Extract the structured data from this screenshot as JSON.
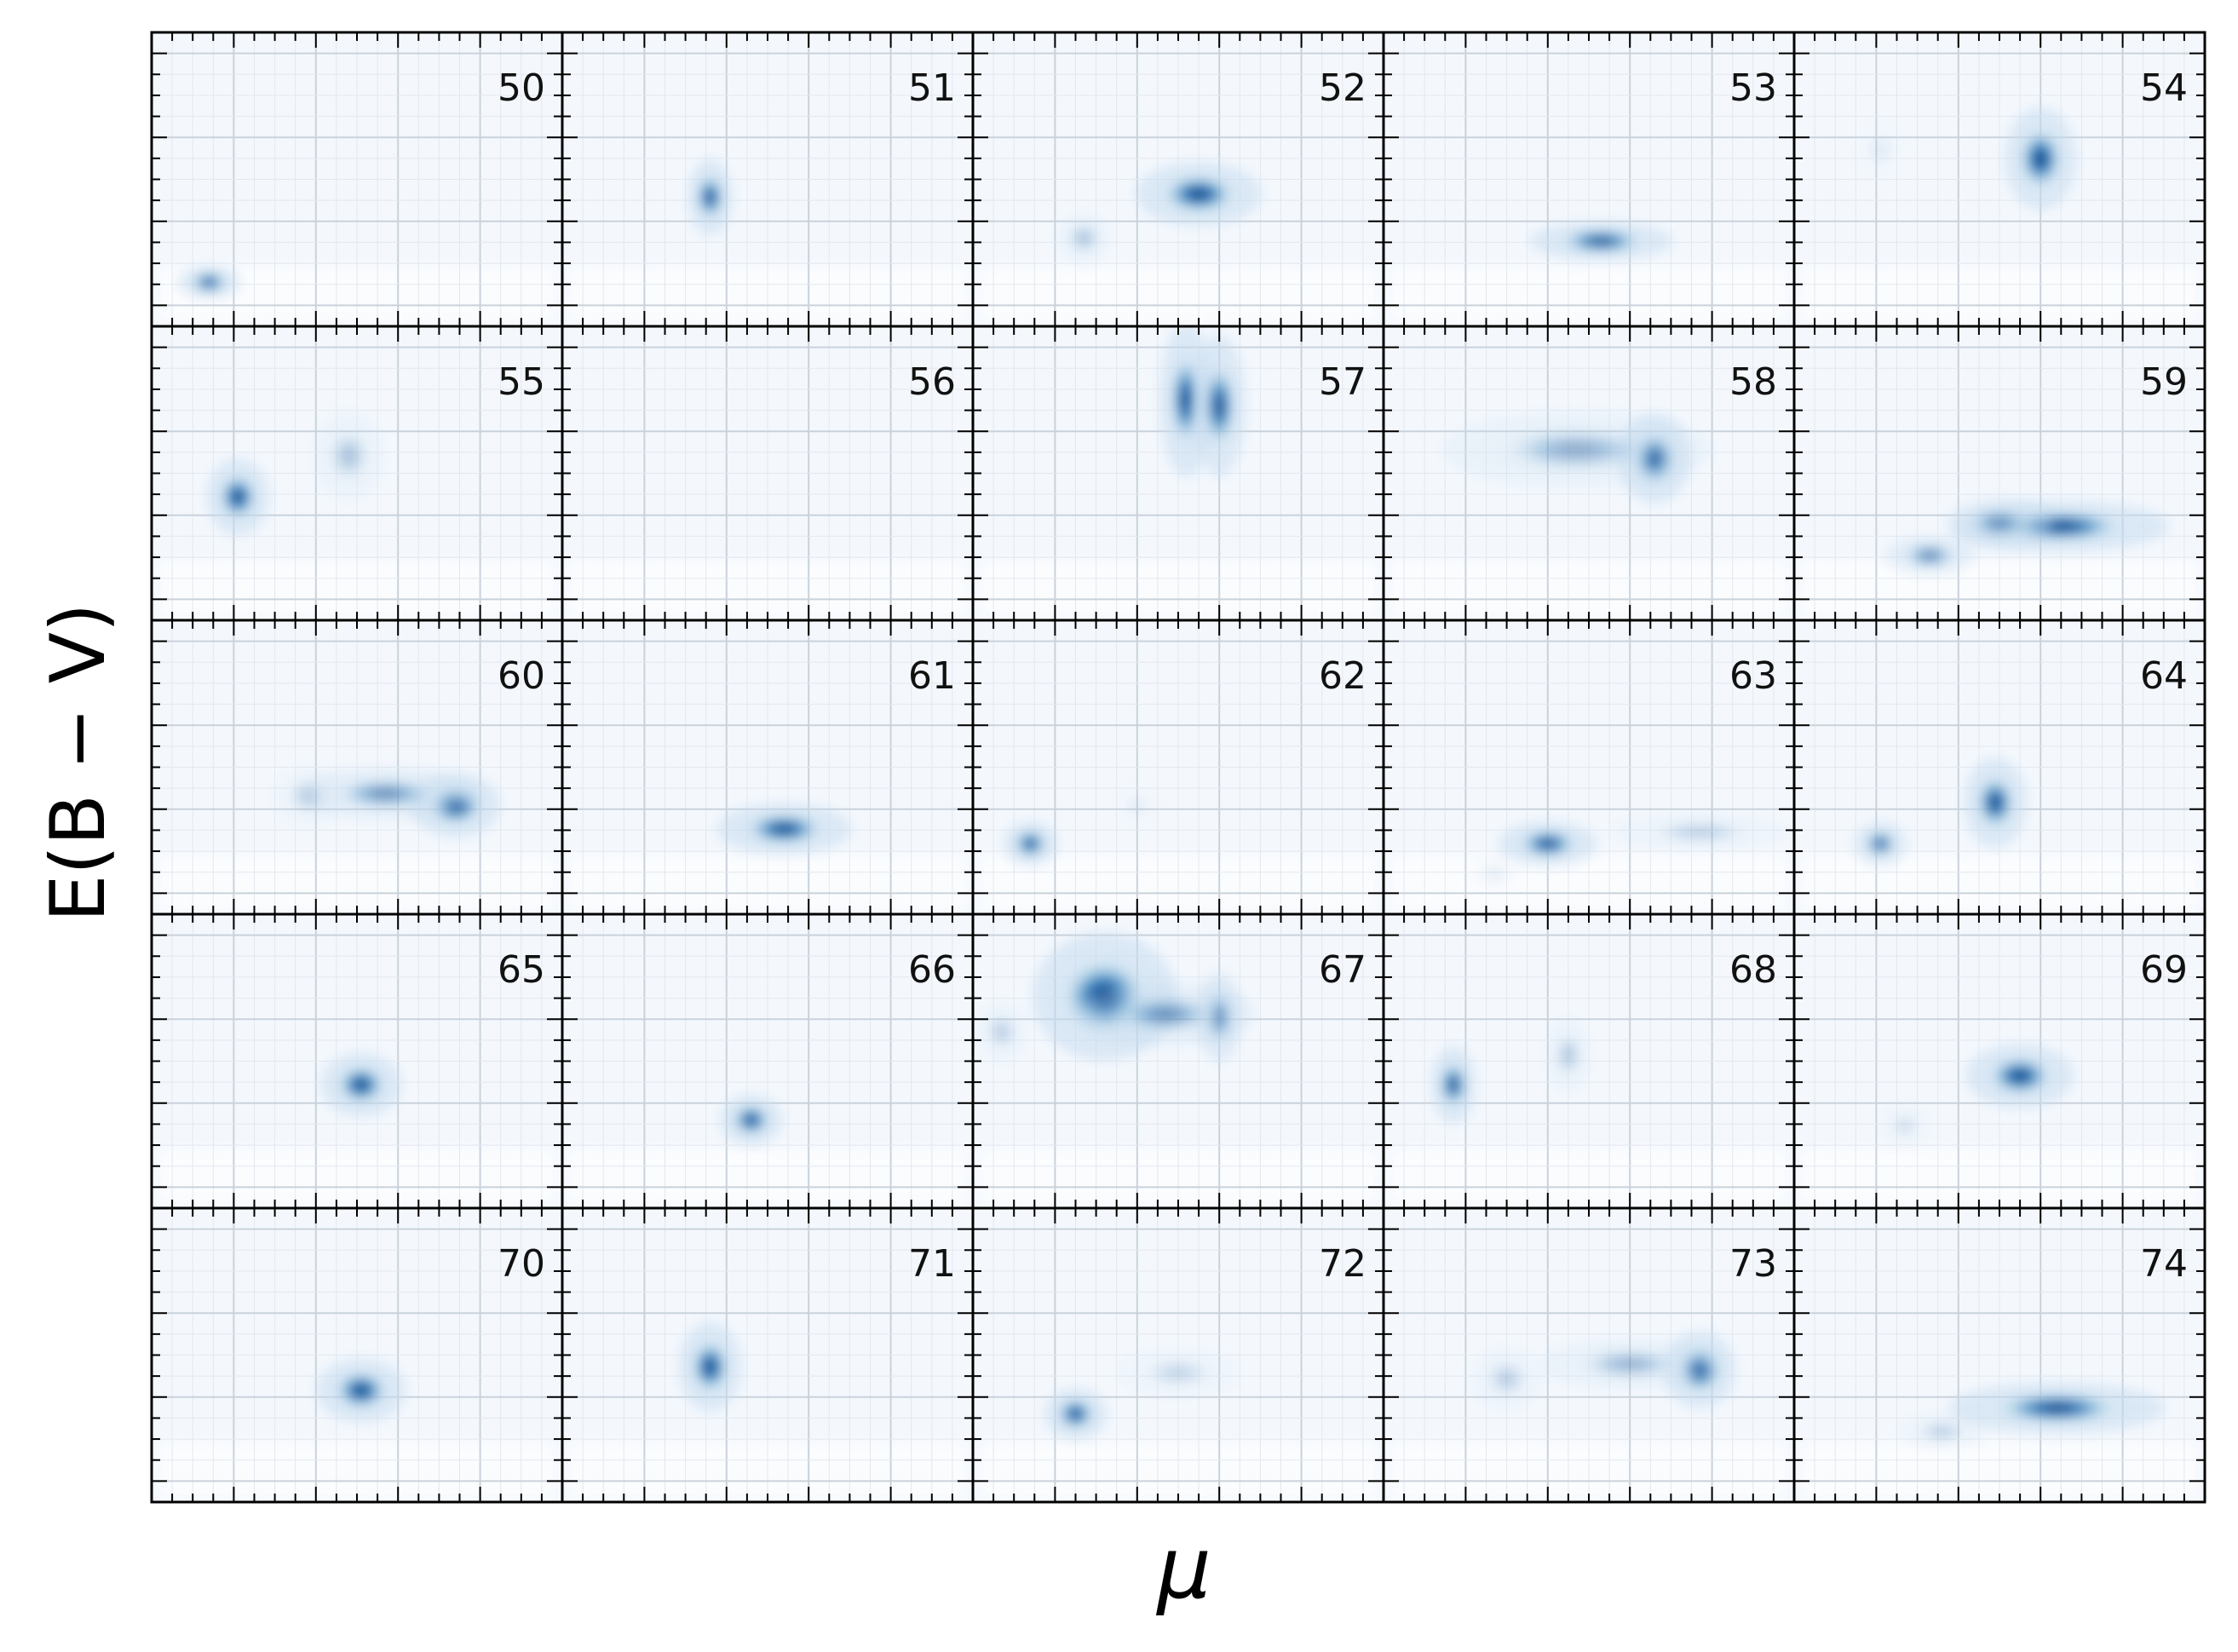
{
  "chart_data": {
    "type": "heatmap",
    "xlabel": "μ",
    "ylabel": "E(B − V)",
    "grid": true,
    "colormap": "Blues",
    "layout": {
      "rows": 5,
      "cols": 5
    },
    "tick_labels_shown": false,
    "panels": [
      {
        "label": "50",
        "blobs": [
          {
            "x": 0.14,
            "y": 0.15,
            "sx": 0.035,
            "sy": 0.025,
            "a": 1.0
          }
        ]
      },
      {
        "label": "51",
        "blobs": [
          {
            "x": 0.36,
            "y": 0.44,
            "sx": 0.025,
            "sy": 0.06,
            "a": 1.0
          }
        ]
      },
      {
        "label": "52",
        "blobs": [
          {
            "x": 0.55,
            "y": 0.45,
            "sx": 0.07,
            "sy": 0.05,
            "a": 1.0
          },
          {
            "x": 0.27,
            "y": 0.3,
            "sx": 0.03,
            "sy": 0.04,
            "a": 0.35
          }
        ]
      },
      {
        "label": "53",
        "blobs": [
          {
            "x": 0.53,
            "y": 0.29,
            "sx": 0.08,
            "sy": 0.03,
            "a": 1.0
          }
        ]
      },
      {
        "label": "54",
        "blobs": [
          {
            "x": 0.6,
            "y": 0.57,
            "sx": 0.04,
            "sy": 0.08,
            "a": 1.0
          },
          {
            "x": 0.21,
            "y": 0.6,
            "sx": 0.03,
            "sy": 0.05,
            "a": 0.08
          }
        ]
      },
      {
        "label": "55",
        "blobs": [
          {
            "x": 0.21,
            "y": 0.42,
            "sx": 0.035,
            "sy": 0.06,
            "a": 1.0
          },
          {
            "x": 0.48,
            "y": 0.56,
            "sx": 0.04,
            "sy": 0.07,
            "a": 0.3
          }
        ]
      },
      {
        "label": "56",
        "blobs": []
      },
      {
        "label": "57",
        "blobs": [
          {
            "x": 0.52,
            "y": 0.75,
            "sx": 0.03,
            "sy": 0.12,
            "a": 1.0
          },
          {
            "x": 0.6,
            "y": 0.73,
            "sx": 0.03,
            "sy": 0.11,
            "a": 0.95
          }
        ]
      },
      {
        "label": "58",
        "blobs": [
          {
            "x": 0.66,
            "y": 0.55,
            "sx": 0.04,
            "sy": 0.07,
            "a": 1.0
          },
          {
            "x": 0.47,
            "y": 0.58,
            "sx": 0.15,
            "sy": 0.06,
            "a": 0.4
          }
        ]
      },
      {
        "label": "59",
        "blobs": [
          {
            "x": 0.65,
            "y": 0.32,
            "sx": 0.12,
            "sy": 0.04,
            "a": 1.0
          },
          {
            "x": 0.33,
            "y": 0.22,
            "sx": 0.05,
            "sy": 0.03,
            "a": 0.7
          },
          {
            "x": 0.5,
            "y": 0.33,
            "sx": 0.06,
            "sy": 0.04,
            "a": 0.6
          }
        ]
      },
      {
        "label": "60",
        "blobs": [
          {
            "x": 0.74,
            "y": 0.37,
            "sx": 0.05,
            "sy": 0.05,
            "a": 1.0
          },
          {
            "x": 0.57,
            "y": 0.41,
            "sx": 0.1,
            "sy": 0.04,
            "a": 0.6
          },
          {
            "x": 0.38,
            "y": 0.4,
            "sx": 0.04,
            "sy": 0.05,
            "a": 0.2
          }
        ]
      },
      {
        "label": "61",
        "blobs": [
          {
            "x": 0.54,
            "y": 0.29,
            "sx": 0.075,
            "sy": 0.04,
            "a": 1.0
          }
        ]
      },
      {
        "label": "62",
        "blobs": [
          {
            "x": 0.14,
            "y": 0.24,
            "sx": 0.03,
            "sy": 0.035,
            "a": 1.0
          },
          {
            "x": 0.4,
            "y": 0.37,
            "sx": 0.03,
            "sy": 0.04,
            "a": 0.06
          }
        ]
      },
      {
        "label": "63",
        "blobs": [
          {
            "x": 0.4,
            "y": 0.24,
            "sx": 0.055,
            "sy": 0.035,
            "a": 1.0
          },
          {
            "x": 0.77,
            "y": 0.28,
            "sx": 0.1,
            "sy": 0.03,
            "a": 0.25
          },
          {
            "x": 0.27,
            "y": 0.14,
            "sx": 0.03,
            "sy": 0.03,
            "a": 0.1
          }
        ]
      },
      {
        "label": "64",
        "blobs": [
          {
            "x": 0.49,
            "y": 0.38,
            "sx": 0.035,
            "sy": 0.07,
            "a": 1.0
          },
          {
            "x": 0.21,
            "y": 0.24,
            "sx": 0.03,
            "sy": 0.035,
            "a": 0.85
          }
        ]
      },
      {
        "label": "65",
        "blobs": [
          {
            "x": 0.51,
            "y": 0.42,
            "sx": 0.045,
            "sy": 0.05,
            "a": 1.0
          }
        ]
      },
      {
        "label": "66",
        "blobs": [
          {
            "x": 0.46,
            "y": 0.3,
            "sx": 0.035,
            "sy": 0.04,
            "a": 1.0
          }
        ]
      },
      {
        "label": "67",
        "blobs": [
          {
            "x": 0.32,
            "y": 0.72,
            "sx": 0.08,
            "sy": 0.1,
            "a": 1.0
          },
          {
            "x": 0.6,
            "y": 0.65,
            "sx": 0.025,
            "sy": 0.07,
            "a": 0.85
          },
          {
            "x": 0.47,
            "y": 0.66,
            "sx": 0.1,
            "sy": 0.05,
            "a": 0.55
          },
          {
            "x": 0.07,
            "y": 0.6,
            "sx": 0.03,
            "sy": 0.05,
            "a": 0.25
          }
        ]
      },
      {
        "label": "68",
        "blobs": [
          {
            "x": 0.17,
            "y": 0.42,
            "sx": 0.025,
            "sy": 0.06,
            "a": 1.0
          },
          {
            "x": 0.45,
            "y": 0.52,
            "sx": 0.025,
            "sy": 0.06,
            "a": 0.3
          }
        ]
      },
      {
        "label": "69",
        "blobs": [
          {
            "x": 0.55,
            "y": 0.45,
            "sx": 0.06,
            "sy": 0.05,
            "a": 1.0
          },
          {
            "x": 0.27,
            "y": 0.28,
            "sx": 0.03,
            "sy": 0.04,
            "a": 0.15
          }
        ]
      },
      {
        "label": "70",
        "blobs": [
          {
            "x": 0.51,
            "y": 0.38,
            "sx": 0.05,
            "sy": 0.05,
            "a": 1.0
          }
        ]
      },
      {
        "label": "71",
        "blobs": [
          {
            "x": 0.36,
            "y": 0.46,
            "sx": 0.035,
            "sy": 0.07,
            "a": 1.0
          }
        ]
      },
      {
        "label": "72",
        "blobs": [
          {
            "x": 0.25,
            "y": 0.3,
            "sx": 0.035,
            "sy": 0.04,
            "a": 1.0
          },
          {
            "x": 0.5,
            "y": 0.44,
            "sx": 0.07,
            "sy": 0.04,
            "a": 0.2
          }
        ]
      },
      {
        "label": "73",
        "blobs": [
          {
            "x": 0.77,
            "y": 0.45,
            "sx": 0.04,
            "sy": 0.06,
            "a": 1.0
          },
          {
            "x": 0.6,
            "y": 0.47,
            "sx": 0.1,
            "sy": 0.04,
            "a": 0.4
          },
          {
            "x": 0.3,
            "y": 0.42,
            "sx": 0.04,
            "sy": 0.05,
            "a": 0.25
          }
        ]
      },
      {
        "label": "74",
        "blobs": [
          {
            "x": 0.64,
            "y": 0.32,
            "sx": 0.12,
            "sy": 0.04,
            "a": 1.0
          },
          {
            "x": 0.36,
            "y": 0.24,
            "sx": 0.05,
            "sy": 0.03,
            "a": 0.25
          }
        ]
      }
    ]
  }
}
